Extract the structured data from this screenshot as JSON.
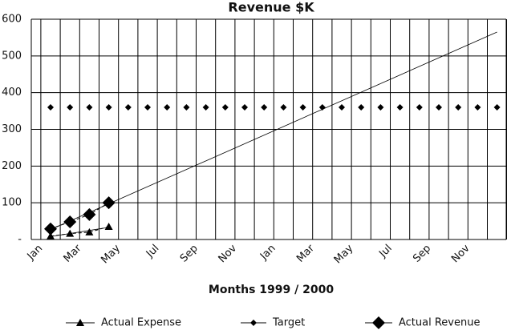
{
  "chart_data": {
    "type": "line",
    "title": "Revenue $K",
    "x_label": "Months 1999 / 2000",
    "categories": [
      "Jan",
      null,
      "Mar",
      null,
      "May",
      null,
      "Jul",
      null,
      "Sep",
      null,
      "Nov",
      null,
      "Jan",
      null,
      "Mar",
      null,
      "May",
      null,
      "Jul",
      null,
      "Sep",
      null,
      "Nov",
      null
    ],
    "ylim": [
      0,
      600
    ],
    "yticks": [
      {
        "value": 0,
        "label": "-"
      },
      100,
      200,
      300,
      400,
      500,
      600
    ],
    "grid": true,
    "series": [
      {
        "name": "Actual Expense",
        "color": "#000000",
        "marker": "triangle",
        "values": [
          9,
          16,
          20,
          35,
          null,
          null,
          null,
          null,
          null,
          null,
          null,
          null,
          null,
          null,
          null,
          null,
          null,
          null,
          null,
          null,
          null,
          null,
          null,
          null
        ]
      },
      {
        "name": "Target",
        "color": "#000000",
        "marker": "diamond",
        "values": [
          360,
          360,
          360,
          360,
          360,
          360,
          360,
          360,
          360,
          360,
          360,
          360,
          360,
          360,
          360,
          360,
          360,
          360,
          360,
          360,
          360,
          360,
          360,
          360
        ]
      },
      {
        "name": "Actual Revenue",
        "color": "#000000",
        "marker": "big-diamond",
        "values": [
          29,
          48,
          68,
          100,
          null,
          null,
          null,
          null,
          null,
          null,
          null,
          null,
          null,
          null,
          null,
          null,
          null,
          null,
          null,
          null,
          null,
          null,
          null,
          null
        ]
      }
    ],
    "trendlines": [
      {
        "series": 0,
        "from": 0,
        "to": 3,
        "start": 8,
        "end": 33
      },
      {
        "series": 2,
        "from": 0,
        "to": 23,
        "start": 27,
        "end": 565
      }
    ]
  }
}
